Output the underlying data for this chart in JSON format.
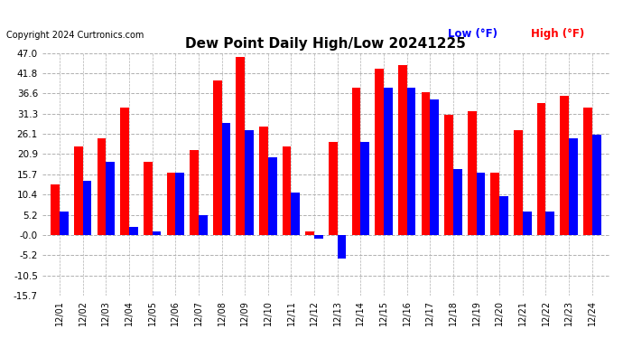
{
  "title": "Dew Point Daily High/Low 20241225",
  "copyright": "Copyright 2024 Curtronics.com",
  "legend_low_label": "Low (°F)",
  "legend_high_label": "High (°F)",
  "ylim": [
    -15.7,
    47.0
  ],
  "yticks": [
    -15.7,
    -10.5,
    -5.2,
    0.0,
    5.2,
    10.4,
    15.7,
    20.9,
    26.1,
    31.3,
    36.6,
    41.8,
    47.0
  ],
  "yticklabels": [
    "-15.7",
    "-10.5",
    "-5.2",
    "-0.0",
    "5.2",
    "10.4",
    "15.7",
    "20.9",
    "26.1",
    "31.3",
    "36.6",
    "41.8",
    "47.0"
  ],
  "dates": [
    "12/01",
    "12/02",
    "12/03",
    "12/04",
    "12/05",
    "12/06",
    "12/07",
    "12/08",
    "12/09",
    "12/10",
    "12/11",
    "12/12",
    "12/13",
    "12/14",
    "12/15",
    "12/16",
    "12/17",
    "12/18",
    "12/19",
    "12/20",
    "12/21",
    "12/22",
    "12/23",
    "12/24"
  ],
  "high": [
    13.0,
    23.0,
    25.0,
    33.0,
    19.0,
    16.0,
    22.0,
    40.0,
    46.0,
    28.0,
    23.0,
    1.0,
    24.0,
    38.0,
    43.0,
    44.0,
    37.0,
    31.0,
    32.0,
    16.0,
    27.0,
    34.0,
    36.0,
    33.0
  ],
  "low": [
    6.0,
    14.0,
    19.0,
    2.0,
    1.0,
    16.0,
    5.0,
    29.0,
    27.0,
    20.0,
    11.0,
    -1.0,
    -6.0,
    24.0,
    38.0,
    38.0,
    35.0,
    17.0,
    16.0,
    10.0,
    6.0,
    6.0,
    25.0,
    26.0
  ],
  "bar_width": 0.38,
  "high_color": "#ff0000",
  "low_color": "#0000ff",
  "bg_color": "#ffffff",
  "grid_color": "#b0b0b0",
  "fig_width": 6.9,
  "fig_height": 3.75,
  "dpi": 100
}
